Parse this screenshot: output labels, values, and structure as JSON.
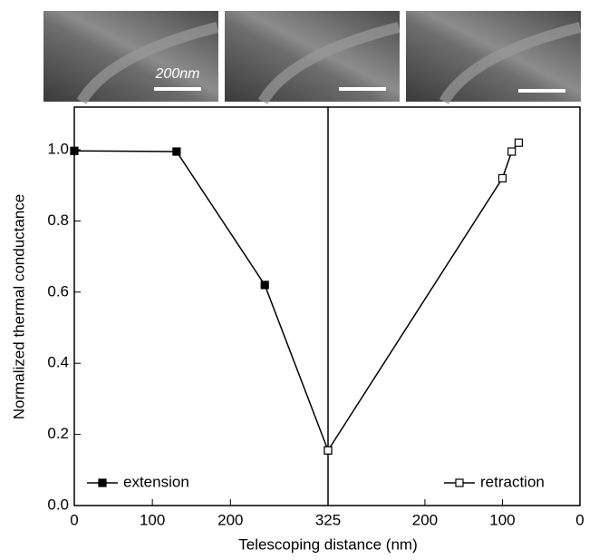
{
  "chart_data": {
    "type": "line",
    "x_label": "Telescoping distance (nm)",
    "y_label": "Normalized thermal conductance",
    "annotations": [
      "200nm"
    ],
    "xlim": [
      0,
      325
    ],
    "xticks": [
      0,
      100,
      200,
      325
    ],
    "x2lim": [
      325,
      0
    ],
    "x2ticks": [
      200,
      100,
      0
    ],
    "ylim": [
      0,
      1.12
    ],
    "yticks": [
      {
        "value": 0,
        "label": "0.0"
      },
      0.2,
      0.4,
      0.6,
      0.8,
      {
        "value": 1,
        "label": "1.0"
      }
    ],
    "series": [
      {
        "name": "extension",
        "color": "#000000",
        "marker": "filled",
        "axis": "x",
        "legend": "lower left",
        "x": [
          0,
          131,
          244,
          325
        ],
        "values": [
          0.997,
          0.995,
          0.62,
          0.155
        ]
      },
      {
        "name": "retraction",
        "color": "#000000",
        "marker": "open",
        "axis": "x2",
        "legend": "lower right",
        "x": [
          325,
          100,
          88,
          79
        ],
        "values": [
          0.155,
          0.92,
          0.995,
          1.02
        ]
      }
    ]
  }
}
